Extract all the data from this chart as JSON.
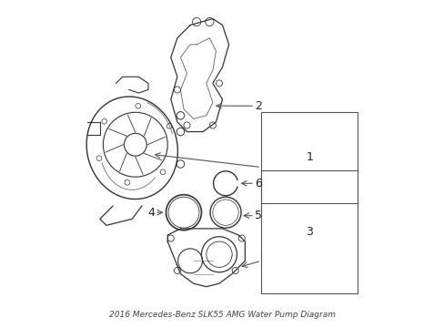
{
  "title": "2016 Mercedes-Benz SLK55 AMG Water Pump Diagram",
  "background_color": "#ffffff",
  "line_color": "#333333",
  "label_color": "#222222",
  "callout_color": "#555555",
  "figsize": [
    4.89,
    3.6
  ],
  "dpi": 100
}
